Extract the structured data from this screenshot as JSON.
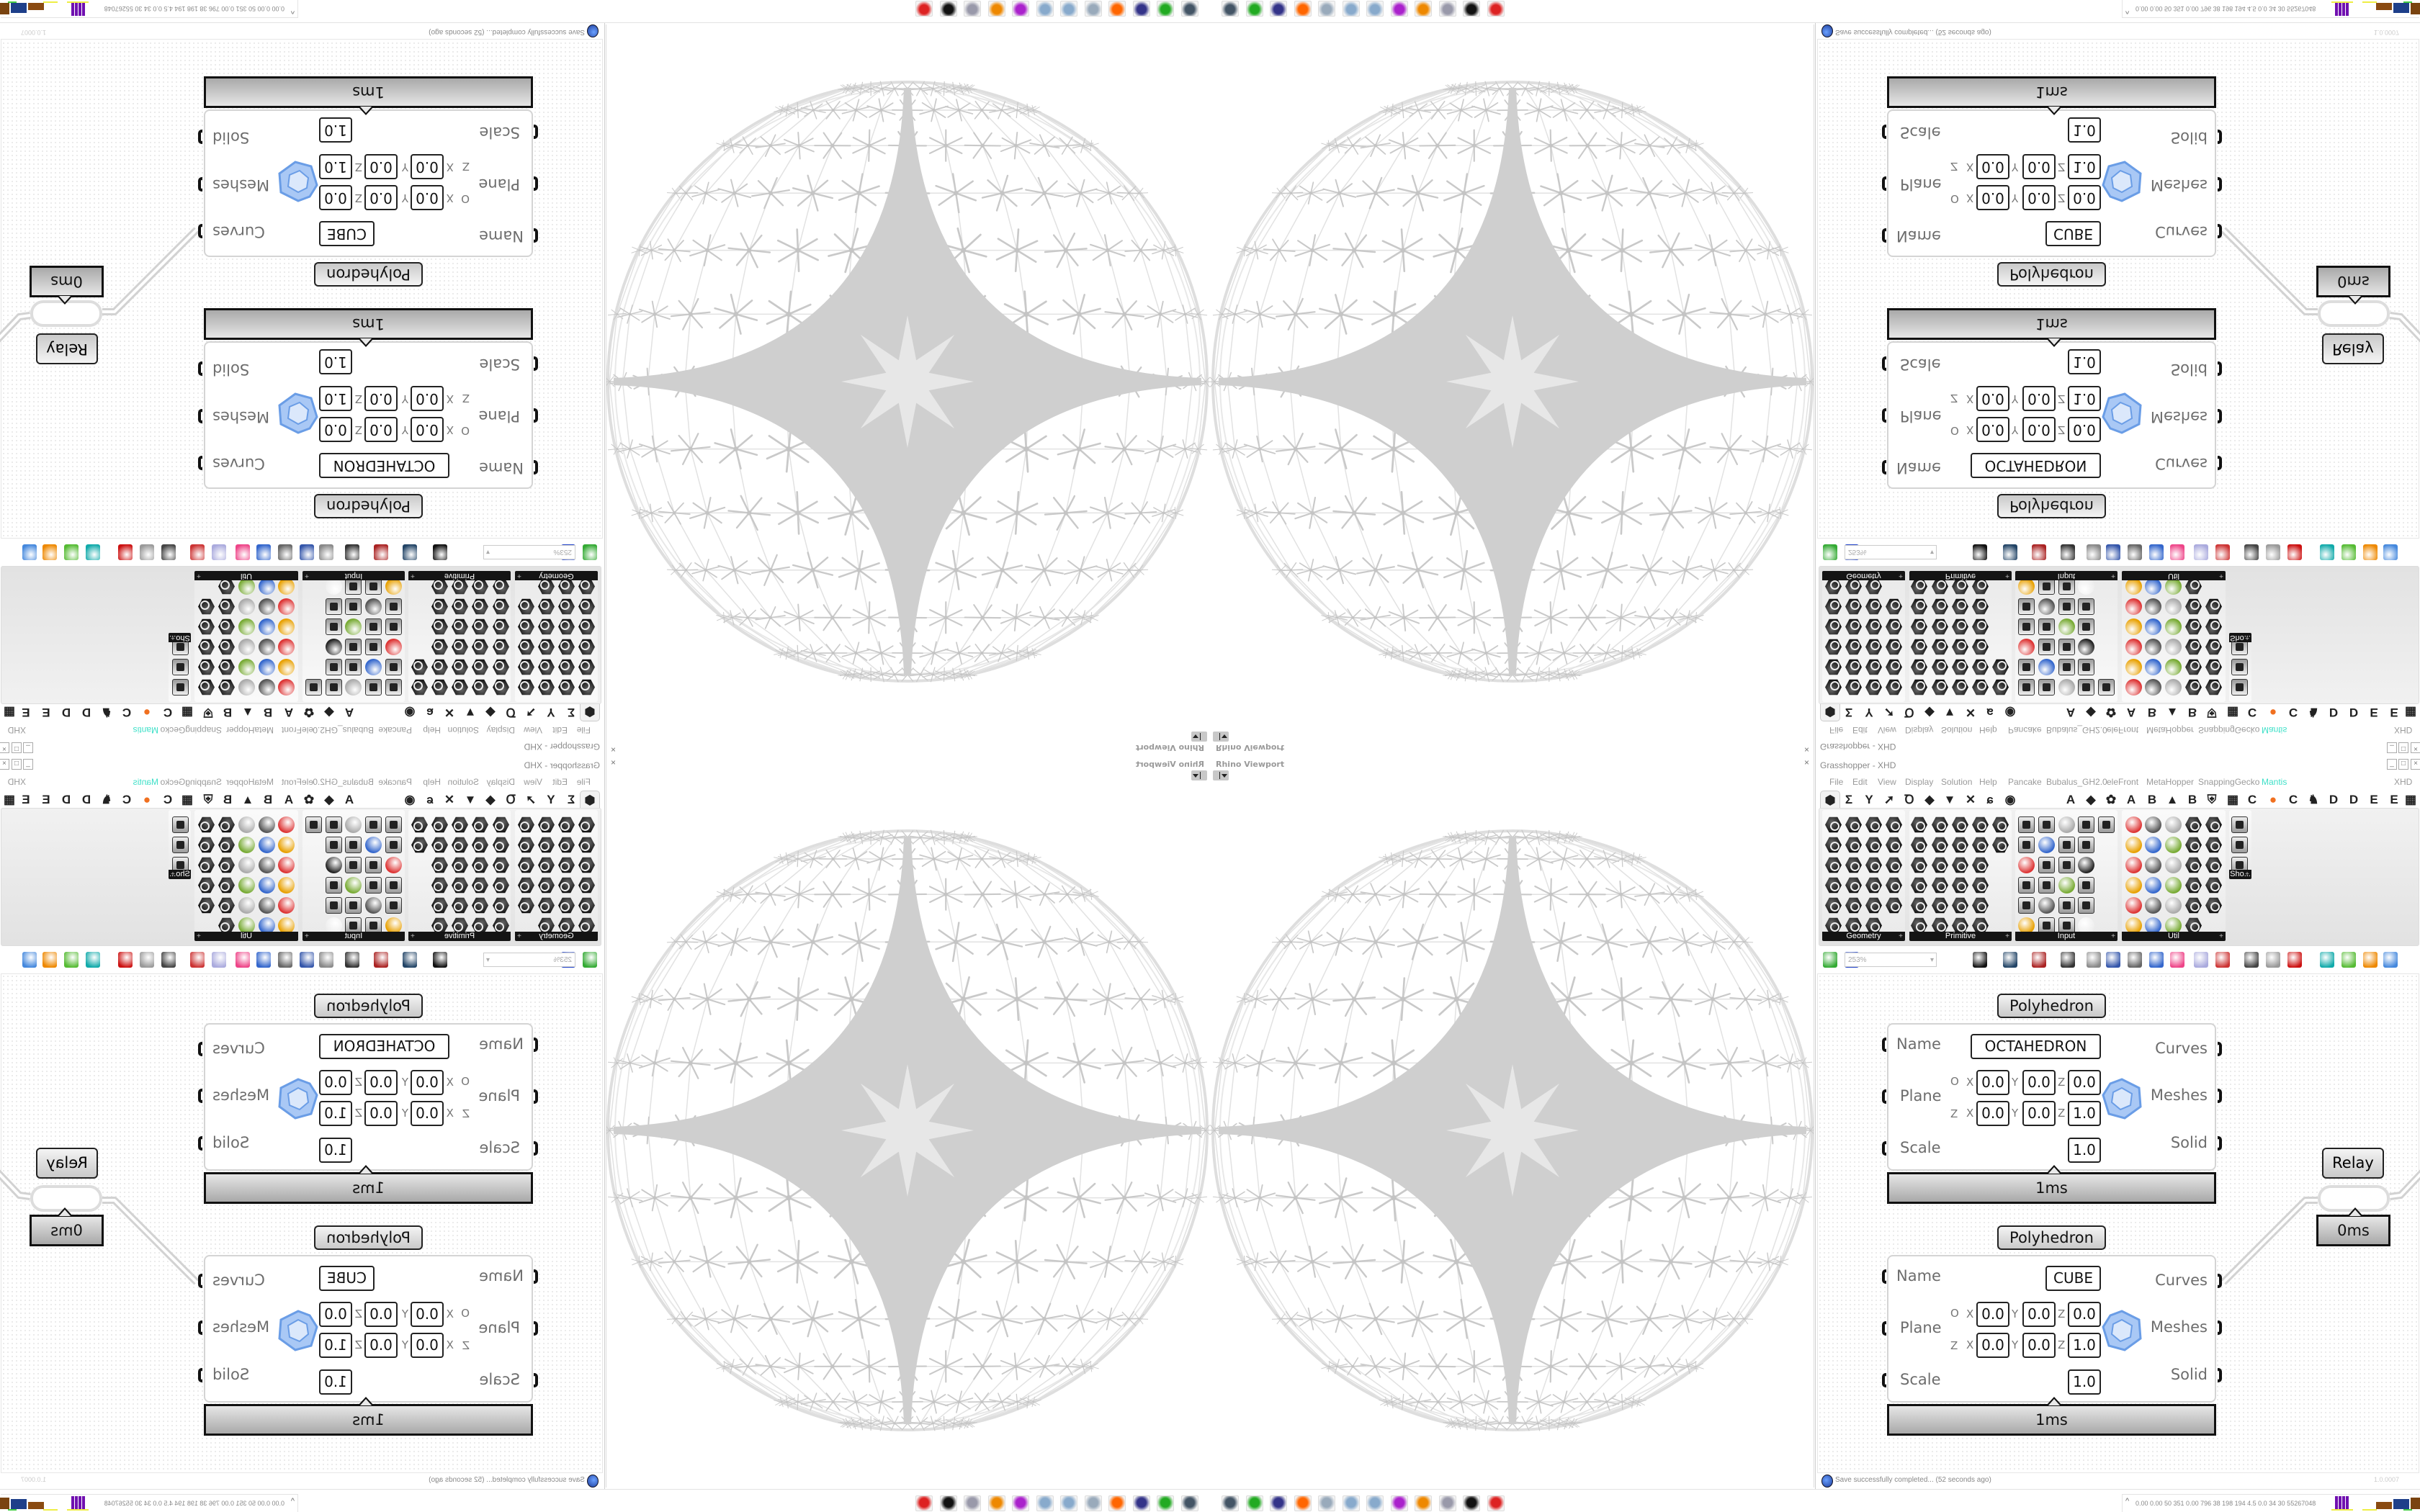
{
  "viewport": {
    "title": "Rhino Viewport",
    "close": "×"
  },
  "grasshopper": {
    "title": "Grasshopper - XHD",
    "doc_label": "XHD",
    "window_buttons": [
      "_",
      "□",
      "×"
    ],
    "menu": [
      "File",
      "Edit",
      "View",
      "Display",
      "Solution",
      "Help",
      "Pancake",
      "Bubalus_GH2.0",
      "eleFront",
      "MetaHopper",
      "SnappingGecko",
      "Mantis"
    ],
    "active_menu": "Mantis",
    "accent_color": "#3ee0c8",
    "tabs": [
      "⬢",
      "Σ",
      "Y",
      "➚",
      "Ꝺ",
      "◆",
      "▼",
      "✕",
      "ɕ",
      "◉",
      "A",
      "◆",
      "✿",
      "A",
      "B",
      "▲",
      "B",
      "⛨",
      "▦",
      "C",
      "●",
      "C",
      "♞",
      "D",
      "D",
      "E",
      "E",
      "▦"
    ],
    "ribbon_panels": [
      {
        "label": "Geometry"
      },
      {
        "label": "Primitive"
      },
      {
        "label": "Input"
      },
      {
        "label": "Util"
      },
      {
        "label": "Sho..."
      }
    ],
    "zoom": "253%",
    "toolbar_icons": [
      "open-file",
      "save-file",
      "zoom-extents",
      "preview-eye",
      "sketch-pen",
      "bake",
      "at-sign",
      "gha",
      "canvas-widget",
      "search",
      "package",
      "bulb",
      "wires",
      "preview-shaded",
      "preview-wire",
      "preview-red",
      "render-teal",
      "render-green",
      "render-orange",
      "sphere-blue"
    ]
  },
  "canvas": {
    "components": [
      {
        "title": "Polyhedron",
        "inputs": [
          "Name",
          "Plane",
          "Scale"
        ],
        "outputs": [
          "Curves",
          "Meshes",
          "Solid"
        ],
        "name": "OCTAHEDRON",
        "axes": {
          "o": "O",
          "z": "Z",
          "x": "X",
          "y": "Y",
          "zz": "Z"
        },
        "origin": [
          "0.0",
          "0.0",
          "0.0"
        ],
        "zaxis": [
          "0.0",
          "0.0",
          "1.0"
        ],
        "scale": "1.0",
        "time": "1ms"
      },
      {
        "title": "Polyhedron",
        "inputs": [
          "Name",
          "Plane",
          "Scale"
        ],
        "outputs": [
          "Curves",
          "Meshes",
          "Solid"
        ],
        "name": "CUBE",
        "axes": {
          "o": "O",
          "z": "Z",
          "x": "X",
          "y": "Y",
          "zz": "Z"
        },
        "origin": [
          "0.0",
          "0.0",
          "0.0"
        ],
        "zaxis": [
          "0.0",
          "0.0",
          "1.0"
        ],
        "scale": "1.0",
        "time": "1ms"
      }
    ],
    "relay": {
      "title": "Relay",
      "time": "0ms"
    }
  },
  "status": {
    "message": "Save successfully completed... (52 seconds ago)",
    "version": "1.0.0007"
  },
  "taskbar": {
    "apps": [
      "remote-desktop",
      "terminal",
      "disk-64",
      "firefox",
      "calculator",
      "paint",
      "paint-2",
      "discord-like",
      "blender",
      "file-manager",
      "rhino",
      "red-app"
    ],
    "tray_stats": "0.00 0.00  50  351  0.00  796  38  198  194  4.5  0.0  34  30  55267048"
  }
}
